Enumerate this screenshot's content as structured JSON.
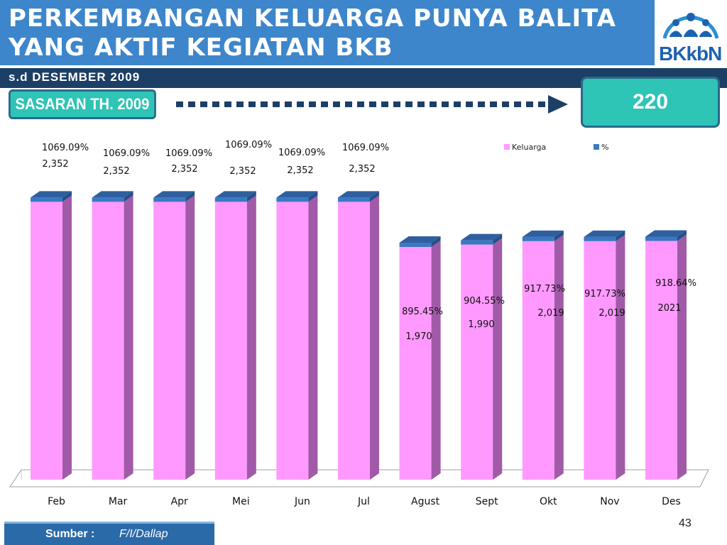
{
  "header": {
    "title_line1": "PERKEMBANGAN KELUARGA PUNYA BALITA",
    "title_line2": "YANG AKTIF KEGIATAN BKB",
    "logo_text": "BKkbN"
  },
  "subtitle": "s.d  DESEMBER  2009",
  "target": {
    "label": "SASARAN TH. 2009",
    "value": "220"
  },
  "footer": {
    "label": "Sumber :",
    "source": "F/I/Dallap",
    "page": "43"
  },
  "colors": {
    "keluarga": "#ff99ff",
    "percent": "#3a78c4",
    "header": "#3d86cb",
    "subbar": "#1c3f66",
    "teal": "#2ec4b6"
  },
  "chart_data": {
    "type": "bar",
    "title": "",
    "xlabel": "",
    "ylabel": "",
    "categories": [
      "Feb",
      "Mar",
      "Apr",
      "Mei",
      "Jun",
      "Jul",
      "Agust",
      "Sept",
      "Okt",
      "Nov",
      "Des"
    ],
    "series": [
      {
        "name": "Keluarga",
        "values": [
          2352,
          2352,
          2352,
          2352,
          2352,
          2352,
          1970,
          1990,
          2019,
          2019,
          2021
        ],
        "labels": [
          "2,352",
          "2,352",
          "2,352",
          "2,352",
          "2,352",
          "2,352",
          "1,970",
          "1,990",
          "2,019",
          "2,019",
          "2021"
        ]
      },
      {
        "name": "%",
        "values": [
          1069.09,
          1069.09,
          1069.09,
          1069.09,
          1069.09,
          1069.09,
          895.45,
          904.55,
          917.73,
          917.73,
          918.64
        ],
        "labels": [
          "1069.09%",
          "1069.09%",
          "1069.09%",
          "1069.09%",
          "1069.09%",
          "1069.09%",
          "895.45%",
          "904.55%",
          "917.73%",
          "917.73%",
          "918.64%"
        ]
      }
    ],
    "legend_position": "top-right",
    "grid": false
  }
}
